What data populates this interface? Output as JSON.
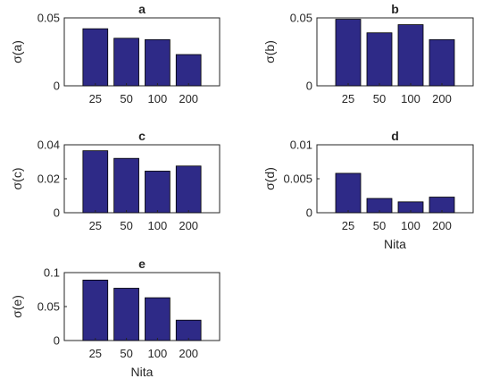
{
  "chart_data": [
    {
      "type": "bar",
      "title": "a",
      "categories": [
        "25",
        "50",
        "100",
        "200"
      ],
      "values": [
        0.042,
        0.035,
        0.034,
        0.023
      ],
      "ylabel": "σ(a)",
      "xlabel": "",
      "ylim": [
        0,
        0.05
      ],
      "yticks": [
        0,
        0.05
      ],
      "ytick_labels": [
        "0",
        "0.05"
      ],
      "bar_color": "#2e2a87",
      "grid": false
    },
    {
      "type": "bar",
      "title": "b",
      "categories": [
        "25",
        "50",
        "100",
        "200"
      ],
      "values": [
        0.049,
        0.039,
        0.045,
        0.034
      ],
      "ylabel": "σ(b)",
      "xlabel": "",
      "ylim": [
        0,
        0.05
      ],
      "yticks": [
        0,
        0.05
      ],
      "ytick_labels": [
        "0",
        "0.05"
      ],
      "bar_color": "#2e2a87",
      "grid": false
    },
    {
      "type": "bar",
      "title": "c",
      "categories": [
        "25",
        "50",
        "100",
        "200"
      ],
      "values": [
        0.0365,
        0.032,
        0.0245,
        0.0275
      ],
      "ylabel": "σ(c)",
      "xlabel": "",
      "ylim": [
        0,
        0.04
      ],
      "yticks": [
        0,
        0.02,
        0.04
      ],
      "ytick_labels": [
        "0",
        "0.02",
        "0.04"
      ],
      "bar_color": "#2e2a87",
      "grid": false
    },
    {
      "type": "bar",
      "title": "d",
      "categories": [
        "25",
        "50",
        "100",
        "200"
      ],
      "values": [
        0.0058,
        0.0021,
        0.0016,
        0.0023
      ],
      "ylabel": "σ(d)",
      "xlabel": "Nita",
      "ylim": [
        0,
        0.01
      ],
      "yticks": [
        0,
        0.005,
        0.01
      ],
      "ytick_labels": [
        "0",
        "0.005",
        "0.01"
      ],
      "bar_color": "#2e2a87",
      "grid": false
    },
    {
      "type": "bar",
      "title": "e",
      "categories": [
        "25",
        "50",
        "100",
        "200"
      ],
      "values": [
        0.089,
        0.077,
        0.063,
        0.03
      ],
      "ylabel": "σ(e)",
      "xlabel": "Nita",
      "ylim": [
        0,
        0.1
      ],
      "yticks": [
        0,
        0.05,
        0.1
      ],
      "ytick_labels": [
        "0",
        "0.05",
        "0.1"
      ],
      "bar_color": "#2e2a87",
      "grid": false
    }
  ]
}
